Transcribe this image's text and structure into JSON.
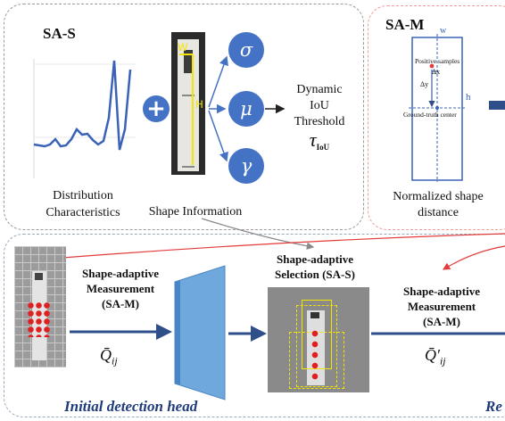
{
  "sas_panel": {
    "title": "SA-S",
    "distribution_label": "Distribution\nCharacteristics",
    "shape_label": "Shape Information",
    "width_marker": "W",
    "height_marker": "H",
    "params": [
      "σ",
      "μ",
      "γ"
    ],
    "threshold_line1": "Dynamic",
    "threshold_line2": "IoU",
    "threshold_line3": "Threshold",
    "threshold_symbol": "τ",
    "threshold_subscript": "IoU",
    "plus_symbol": "+"
  },
  "sam_panel": {
    "title": "SA-M",
    "w_label": "w",
    "h_label": "h",
    "delta_x": "Δx",
    "delta_y": "Δy",
    "positive_samples": "Positive samples",
    "gt_center": "Ground-truth center",
    "caption": "Normalized shape\ndistance"
  },
  "pipeline": {
    "sam_label_1": "Shape-adaptive\nMeasurement\n(SA-M)",
    "q_label_1": "Q̄",
    "q_sub_1": "ij",
    "sas_label": "Shape-adaptive\nSelection (SA-S)",
    "sam_label_2": "Shape-adaptive\nMeasurement\n(SA-M)",
    "q_label_2": "Q̄′",
    "q_sub_2": "ij",
    "initial_head": "Initial detection head",
    "cut_label": "Re"
  },
  "colors": {
    "accent_blue": "#4472c4",
    "arrow_blue": "#2e4f8a",
    "sam_border": "#f29a9a",
    "red_arrow": "#e23b3b",
    "grid_yellow": "#f2e600"
  }
}
